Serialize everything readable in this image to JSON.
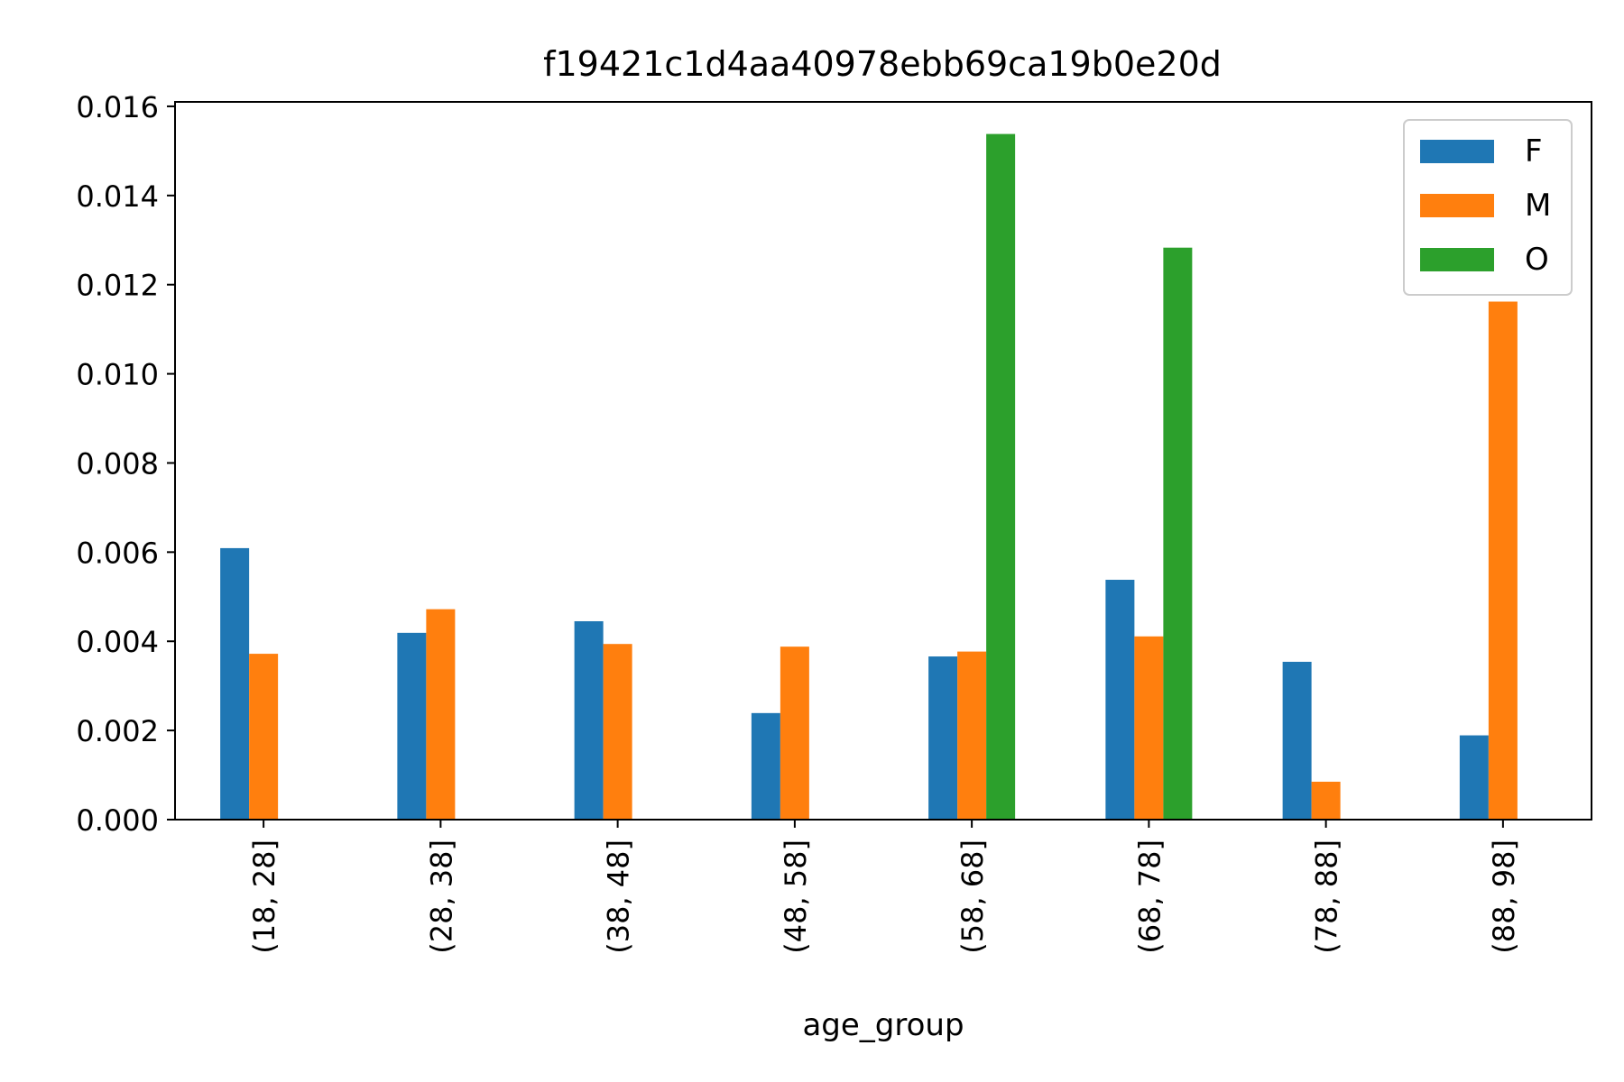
{
  "chart_data": {
    "type": "bar",
    "title": "f19421c1d4aa40978ebb69ca19b0e20d",
    "xlabel": "age_group",
    "ylabel": "",
    "categories": [
      "(18, 28]",
      "(28, 38]",
      "(38, 48]",
      "(48, 58]",
      "(58, 68]",
      "(68, 78]",
      "(78, 88]",
      "(88, 98]"
    ],
    "series": [
      {
        "name": "F",
        "color": "#1f77b4",
        "values": [
          0.00609,
          0.00419,
          0.00445,
          0.00239,
          0.00366,
          0.00538,
          0.00354,
          0.00189
        ]
      },
      {
        "name": "M",
        "color": "#ff7f0e",
        "values": [
          0.00372,
          0.00472,
          0.00394,
          0.00388,
          0.00377,
          0.00411,
          0.00085,
          0.01162
        ]
      },
      {
        "name": "O",
        "color": "#2ca02c",
        "values": [
          0,
          0,
          0,
          0,
          0.01538,
          0.01283,
          0,
          0
        ]
      }
    ],
    "ylim": [
      0,
      0.0161
    ],
    "yticks": [
      "0.000",
      "0.002",
      "0.004",
      "0.006",
      "0.008",
      "0.010",
      "0.012",
      "0.014",
      "0.016"
    ],
    "grid": false,
    "legend_position": "top-right"
  }
}
